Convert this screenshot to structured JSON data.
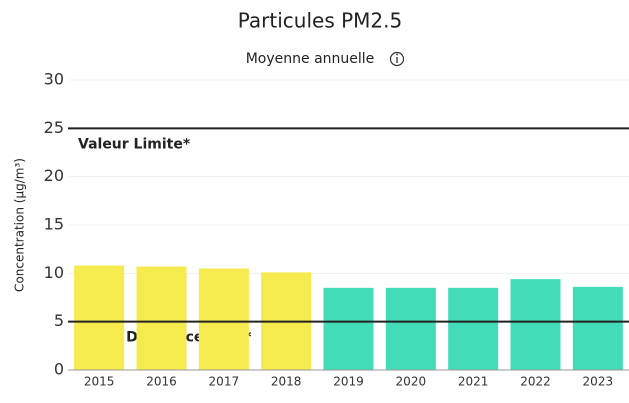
{
  "chart_data": {
    "type": "bar",
    "title": "Particules PM2.5",
    "subtitle": "Moyenne annuelle",
    "ylabel": "Concentration (µg/m³)",
    "categories": [
      "2015",
      "2016",
      "2017",
      "2018",
      "2019",
      "2020",
      "2021",
      "2022",
      "2023"
    ],
    "values": [
      10.8,
      10.7,
      10.5,
      10.1,
      8.5,
      8.5,
      8.5,
      9.4,
      8.6
    ],
    "colors": [
      "#f5ea4e",
      "#f5ea4e",
      "#f5ea4e",
      "#f5ea4e",
      "#43dcb8",
      "#43dcb8",
      "#43dcb8",
      "#43dcb8",
      "#43dcb8"
    ],
    "ylim": [
      0,
      30
    ],
    "yticks": [
      0,
      5,
      10,
      15,
      20,
      25,
      30
    ],
    "grid": true,
    "reference_lines": [
      {
        "value": 25,
        "label": "Valeur Limite*"
      },
      {
        "value": 5,
        "label": "Ligne Directrice OMS*"
      }
    ]
  }
}
